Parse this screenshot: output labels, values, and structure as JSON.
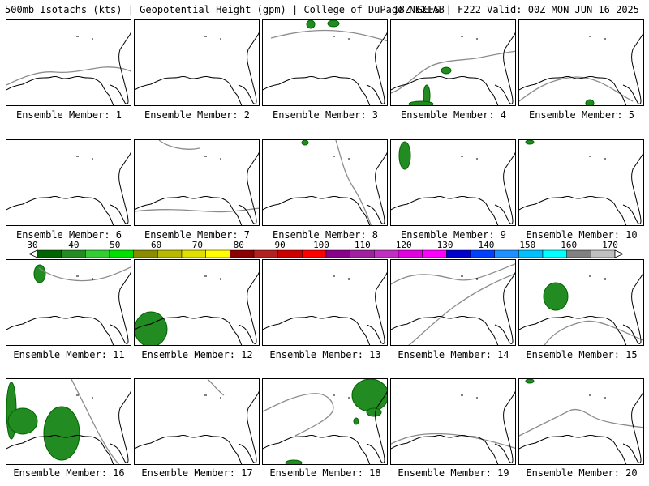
{
  "header": {
    "title_left": "500mb Isotachs (kts) | Geopotential Height (gpm) | College of DuPage NEXLAB",
    "title_right": "18Z GEFS | F222 Valid: 00Z MON JUN 16 2025"
  },
  "members": [
    {
      "label": "Ensemble Member: 1",
      "contour": "a",
      "blobs": []
    },
    {
      "label": "Ensemble Member: 2",
      "contour": "none",
      "blobs": []
    },
    {
      "label": "Ensemble Member: 3",
      "contour": "b",
      "blobs": [
        "top-center"
      ]
    },
    {
      "label": "Ensemble Member: 4",
      "contour": "c",
      "blobs": [
        "gulf-center",
        "gulf-west",
        "bottom-center"
      ]
    },
    {
      "label": "Ensemble Member: 5",
      "contour": "d",
      "blobs": [
        "bottom-right"
      ]
    },
    {
      "label": "Ensemble Member: 6",
      "contour": "none",
      "blobs": []
    },
    {
      "label": "Ensemble Member: 7",
      "contour": "e",
      "blobs": []
    },
    {
      "label": "Ensemble Member: 8",
      "contour": "f",
      "blobs": [
        "top-center-small"
      ]
    },
    {
      "label": "Ensemble Member: 9",
      "contour": "none",
      "blobs": [
        "top-left"
      ]
    },
    {
      "label": "Ensemble Member: 10",
      "contour": "none",
      "blobs": [
        "top-left-small"
      ]
    },
    {
      "label": "Ensemble Member: 11",
      "contour": "g",
      "blobs": [
        "top-left-mid"
      ]
    },
    {
      "label": "Ensemble Member: 12",
      "contour": "none",
      "blobs": [
        "bottom-left-large"
      ]
    },
    {
      "label": "Ensemble Member: 13",
      "contour": "none",
      "blobs": []
    },
    {
      "label": "Ensemble Member: 14",
      "contour": "h",
      "blobs": []
    },
    {
      "label": "Ensemble Member: 15",
      "contour": "i",
      "blobs": [
        "diagonal-center"
      ]
    },
    {
      "label": "Ensemble Member: 16",
      "contour": "j",
      "blobs": [
        "left-edge",
        "texas-large"
      ]
    },
    {
      "label": "Ensemble Member: 17",
      "contour": "k",
      "blobs": []
    },
    {
      "label": "Ensemble Member: 18",
      "contour": "l",
      "blobs": [
        "top-right-large",
        "bottom-small"
      ]
    },
    {
      "label": "Ensemble Member: 19",
      "contour": "m",
      "blobs": []
    },
    {
      "label": "Ensemble Member: 20",
      "contour": "n",
      "blobs": [
        "top-left-small"
      ]
    }
  ],
  "colorbar": {
    "labels": [
      "30",
      "40",
      "50",
      "60",
      "70",
      "80",
      "90",
      "100",
      "110",
      "120",
      "130",
      "140",
      "150",
      "160",
      "170"
    ],
    "colors": [
      "#006400",
      "#228B22",
      "#32CD32",
      "#00E000",
      "#8B8B00",
      "#B8B800",
      "#E0E000",
      "#FFFF00",
      "#8B0000",
      "#B22222",
      "#CC0000",
      "#FF0000",
      "#8B008B",
      "#A020A0",
      "#C030C0",
      "#E000E0",
      "#FF00FF",
      "#0000CD",
      "#0040FF",
      "#1E90FF",
      "#00BFFF",
      "#00FFFF",
      "#808080",
      "#C0C0C0"
    ]
  }
}
